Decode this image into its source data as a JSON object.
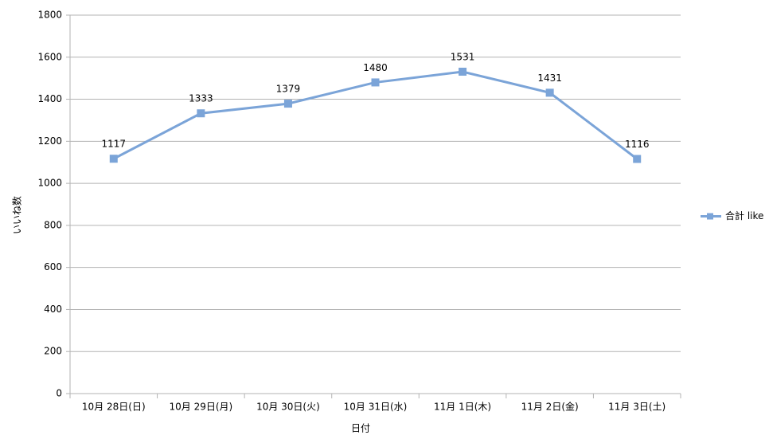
{
  "chart_data": {
    "type": "line",
    "x_label": "日付",
    "y_label": "いいね数",
    "categories": [
      "10月 28日(日)",
      "10月 29日(月)",
      "10月 30日(火)",
      "10月 31日(水)",
      "11月 1日(木)",
      "11月 2日(金)",
      "11月 3日(土)"
    ],
    "series": [
      {
        "name": "合計 like",
        "color": "#7ba4d8",
        "values": [
          1117,
          1333,
          1379,
          1480,
          1531,
          1431,
          1116
        ]
      }
    ],
    "ylim": [
      0,
      1800
    ],
    "yticks": [
      0,
      200,
      400,
      600,
      800,
      1000,
      1200,
      1400,
      1600,
      1800
    ],
    "grid": true,
    "legend": "right",
    "data_labels": true
  }
}
